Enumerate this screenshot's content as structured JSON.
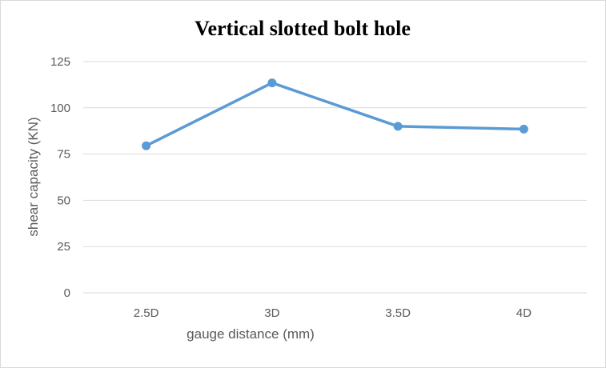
{
  "chart_data": {
    "type": "line",
    "title": "Vertical slotted bolt hole",
    "xlabel": "gauge distance (mm)",
    "ylabel": "shear capacity (KN)",
    "categories": [
      "2.5D",
      "3D",
      "3.5D",
      "4D"
    ],
    "series": [
      {
        "values": [
          79.5,
          113.5,
          90,
          88.5
        ],
        "color": "#5b9bd5"
      }
    ],
    "ylim": [
      0,
      125
    ],
    "yticks": [
      0,
      25,
      50,
      75,
      100,
      125
    ],
    "grid": true,
    "legend": "none",
    "colors": {
      "line": "#5b9bd5",
      "grid": "#d9d9d9",
      "text": "#595959"
    }
  }
}
